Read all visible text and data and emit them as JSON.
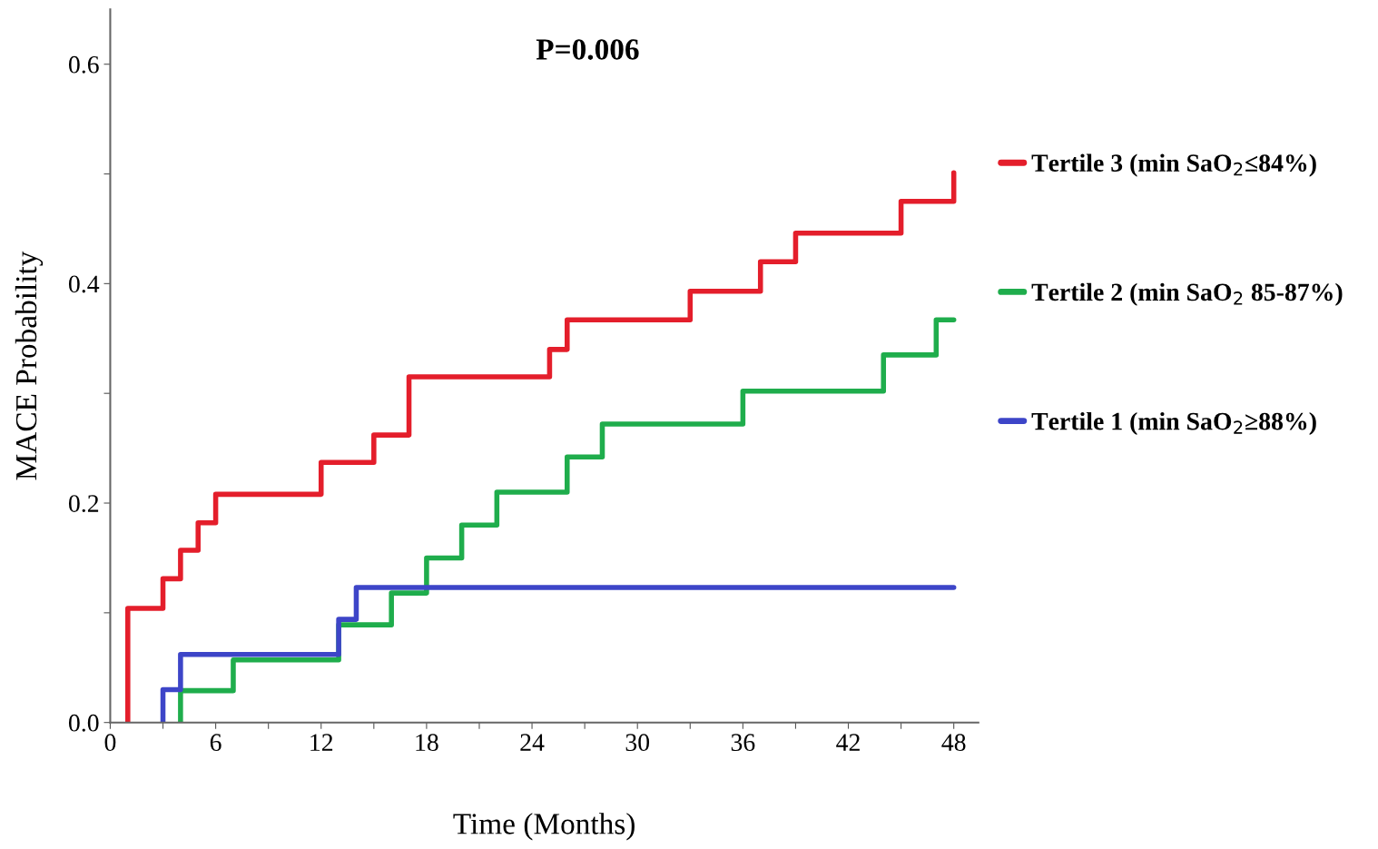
{
  "chart_data": {
    "type": "step",
    "xlabel": "Time (Months)",
    "ylabel": "MACE Probability",
    "annotations": [
      "P=0.006"
    ],
    "series": [
      {
        "name": "Tertile 3 (min SaO$_{2}$≤84%)",
        "color": "#e41e2b",
        "x": [
          1,
          1,
          3,
          4,
          5,
          6,
          12,
          15,
          17,
          25,
          26,
          33,
          37,
          39,
          45,
          48,
          48
        ],
        "values": [
          0,
          0.104,
          0.131,
          0.157,
          0.182,
          0.208,
          0.237,
          0.262,
          0.315,
          0.34,
          0.367,
          0.393,
          0.42,
          0.446,
          0.475,
          0.475,
          0.501
        ]
      },
      {
        "name": "Tertile 2 (min SaO$_{2}$ 85-87%)",
        "color": "#1fad4c",
        "x": [
          4,
          4,
          7,
          13,
          16,
          18,
          20,
          22,
          26,
          28,
          36,
          44,
          47,
          48
        ],
        "values": [
          0,
          0.029,
          0.057,
          0.089,
          0.118,
          0.15,
          0.18,
          0.21,
          0.242,
          0.272,
          0.302,
          0.335,
          0.367,
          0.367
        ]
      },
      {
        "name": "Tertile 1 (min SaO$_{2}$≥88%)",
        "color": "#3d45c8",
        "x": [
          3,
          3,
          4,
          13,
          14,
          48
        ],
        "values": [
          0,
          0.03,
          0.062,
          0.094,
          0.123,
          0.123
        ]
      }
    ],
    "xlim": [
      0,
      49.4
    ],
    "ylim": [
      0,
      0.65
    ],
    "xticks": [
      0,
      {
        "value": 3,
        "label": null
      },
      6,
      {
        "value": 9,
        "label": null
      },
      12,
      {
        "value": 15,
        "label": null
      },
      18,
      {
        "value": 21,
        "label": null
      },
      24,
      {
        "value": 27,
        "label": null
      },
      30,
      {
        "value": 33,
        "label": null
      },
      36,
      {
        "value": 39,
        "label": null
      },
      42,
      {
        "value": 45,
        "label": null
      },
      48
    ],
    "yticks": [
      {
        "value": 0,
        "label": "0.0"
      },
      {
        "value": 0.1,
        "label": null
      },
      {
        "value": 0.2,
        "label": "0.2"
      },
      {
        "value": 0.3,
        "label": null
      },
      {
        "value": 0.4,
        "label": "0.4"
      },
      {
        "value": 0.5,
        "label": null
      },
      {
        "value": 0.6,
        "label": "0.6"
      }
    ],
    "grid": false,
    "legend": "right",
    "line_style": "solid",
    "marker": "none"
  }
}
